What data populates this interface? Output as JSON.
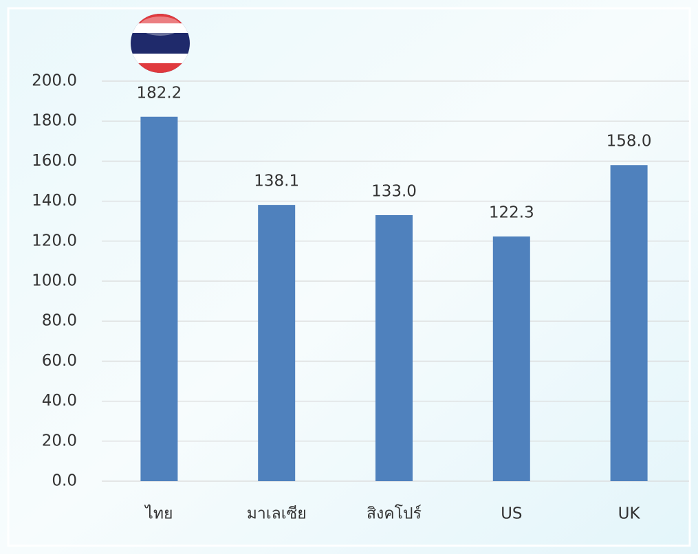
{
  "chart_data": {
    "type": "bar",
    "categories": [
      "ไทย",
      "มาเลเซีย",
      "สิงคโปร์",
      "US",
      "UK"
    ],
    "values": [
      182.2,
      138.1,
      133.0,
      122.3,
      158.0
    ],
    "value_labels": [
      "182.2",
      "138.1",
      "133.0",
      "122.3",
      "158.0"
    ],
    "color": "#4f81bd",
    "ylim": [
      0,
      200
    ],
    "yticks": [
      {
        "value": 0,
        "label": "0.0"
      },
      {
        "value": 20,
        "label": "20.0"
      },
      {
        "value": 40,
        "label": "40.0"
      },
      {
        "value": 60,
        "label": "60.0"
      },
      {
        "value": 80,
        "label": "80.0"
      },
      {
        "value": 100,
        "label": "100.0"
      },
      {
        "value": 120,
        "label": "120.0"
      },
      {
        "value": 140,
        "label": "140.0"
      },
      {
        "value": 160,
        "label": "160.0"
      },
      {
        "value": 180,
        "label": "180.0"
      },
      {
        "value": 200,
        "label": "200.0"
      }
    ],
    "grid": true
  }
}
